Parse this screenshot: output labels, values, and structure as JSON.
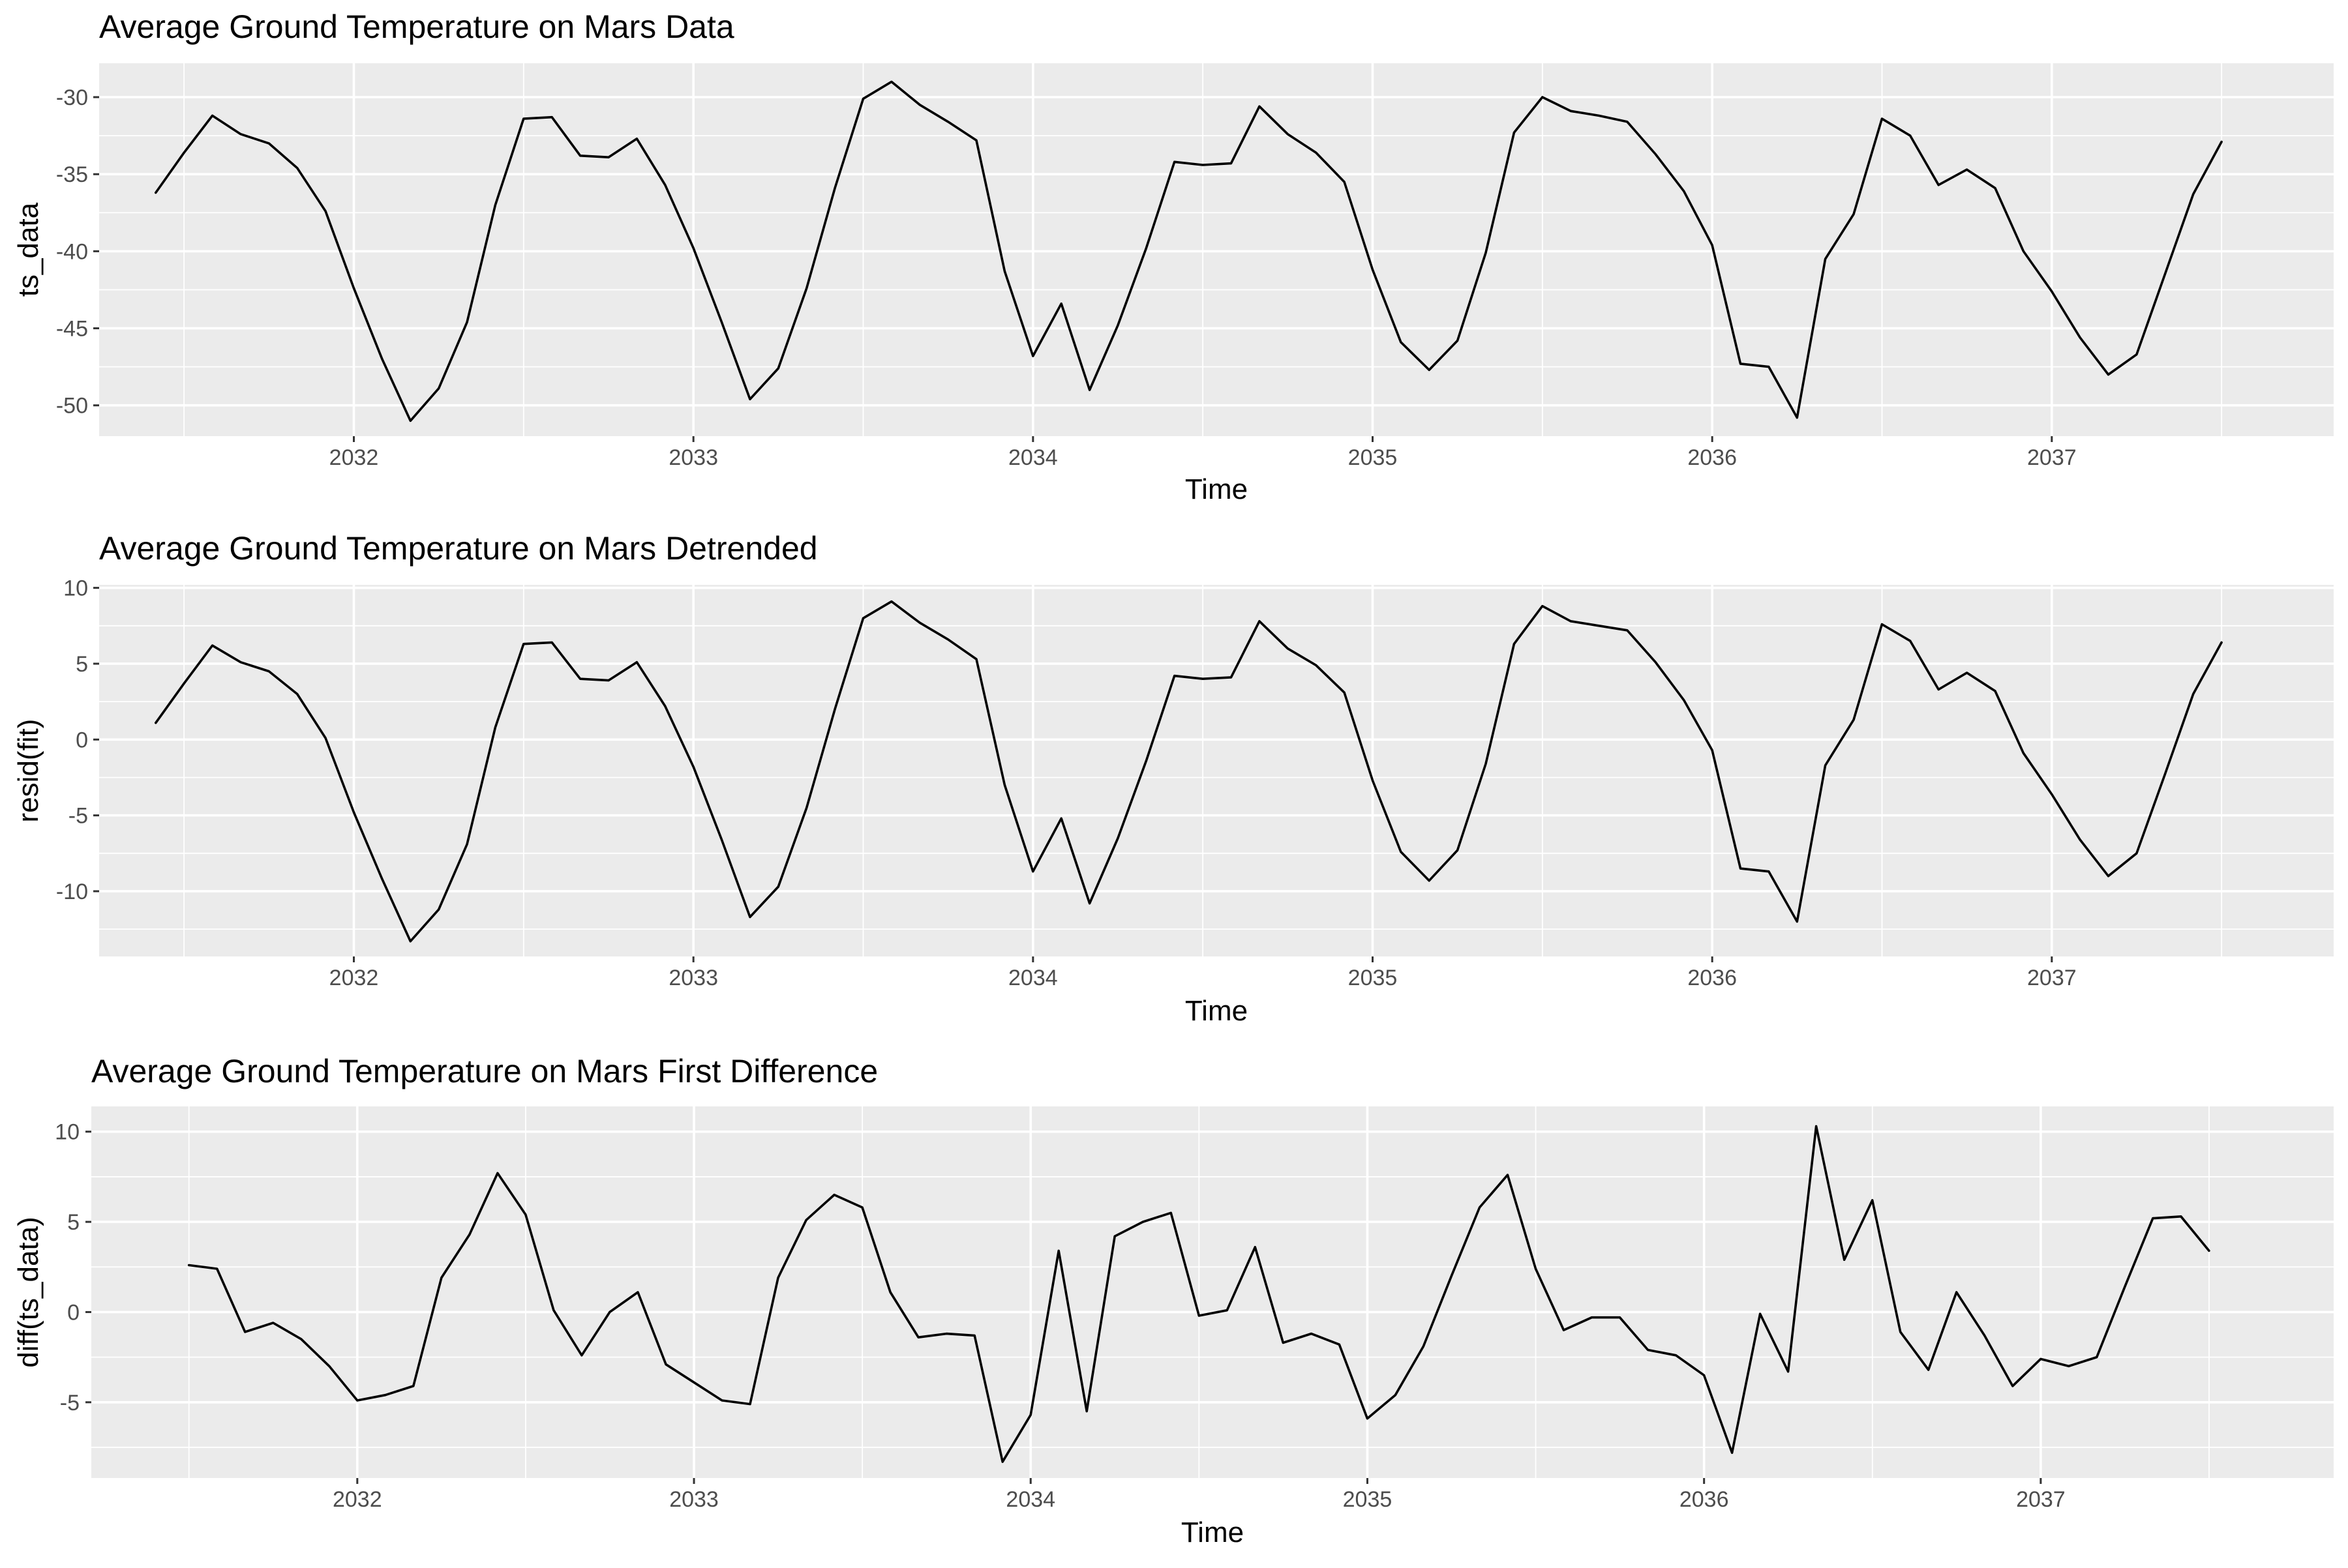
{
  "chart_data": [
    {
      "type": "line",
      "title": "Average Ground Temperature on Mars Data",
      "xlabel": "Time",
      "ylabel": "ts_data",
      "x_tick_labels": [
        "2032",
        "2033",
        "2034",
        "2035",
        "2036",
        "2037"
      ],
      "y_tick_labels": [
        "-30",
        "-35",
        "-40",
        "-45",
        "-50"
      ],
      "y_ticks": [
        -30,
        -35,
        -40,
        -45,
        -50
      ],
      "xlim": [
        2031.25,
        2037.83
      ],
      "ylim": [
        -52.0,
        -27.8
      ],
      "x_start": 2031.4167,
      "x_step": 0.08333,
      "grid": true,
      "values": [
        -36.2,
        -33.6,
        -31.2,
        -32.4,
        -33.0,
        -34.6,
        -37.4,
        -42.4,
        -47.0,
        -51.0,
        -48.9,
        -44.6,
        -37.0,
        -31.4,
        -31.3,
        -33.8,
        -33.9,
        -32.7,
        -35.7,
        -39.8,
        -44.6,
        -49.6,
        -47.6,
        -42.4,
        -35.9,
        -30.1,
        -29.0,
        -30.5,
        -31.6,
        -32.8,
        -41.3,
        -46.8,
        -43.4,
        -49.0,
        -44.8,
        -39.8,
        -34.2,
        -34.4,
        -34.3,
        -30.6,
        -32.4,
        -33.6,
        -35.5,
        -41.2,
        -45.9,
        -47.7,
        -45.8,
        -40.1,
        -32.3,
        -30.0,
        -30.9,
        -31.2,
        -31.6,
        -33.7,
        -36.1,
        -39.6,
        -47.3,
        -47.5,
        -50.8,
        -40.5,
        -37.6,
        -31.4,
        -32.5,
        -35.7,
        -34.7,
        -35.9,
        -40.0,
        -42.6,
        -45.6,
        -48.0,
        -46.7,
        -41.5,
        -36.3,
        -32.9
      ]
    },
    {
      "type": "line",
      "title": "Average Ground Temperature on Mars Detrended",
      "xlabel": "Time",
      "ylabel": "resid(fit)",
      "x_tick_labels": [
        "2032",
        "2033",
        "2034",
        "2035",
        "2036",
        "2037"
      ],
      "y_tick_labels": [
        "10",
        "5",
        "0",
        "-5",
        "-10"
      ],
      "y_ticks": [
        10,
        5,
        0,
        -5,
        -10
      ],
      "xlim": [
        2031.25,
        2037.83
      ],
      "ylim": [
        -14.3,
        10.2
      ],
      "x_start": 2031.4167,
      "x_step": 0.08333,
      "grid": true,
      "values": [
        1.1,
        3.7,
        6.2,
        5.1,
        4.5,
        3.0,
        0.1,
        -4.8,
        -9.2,
        -13.3,
        -11.2,
        -6.9,
        0.8,
        6.3,
        6.4,
        4.0,
        3.9,
        5.1,
        2.2,
        -1.8,
        -6.6,
        -11.7,
        -9.7,
        -4.5,
        2.0,
        8.0,
        9.1,
        7.7,
        6.6,
        5.3,
        -3.0,
        -8.7,
        -5.2,
        -10.8,
        -6.5,
        -1.4,
        4.2,
        4.0,
        4.1,
        7.8,
        6.0,
        4.9,
        3.1,
        -2.7,
        -7.4,
        -9.3,
        -7.3,
        -1.6,
        6.3,
        8.8,
        7.8,
        7.5,
        7.2,
        5.1,
        2.6,
        -0.7,
        -8.5,
        -8.7,
        -12.0,
        -1.7,
        1.3,
        7.6,
        6.5,
        3.3,
        4.4,
        3.2,
        -0.9,
        -3.6,
        -6.6,
        -9.0,
        -7.5,
        -2.3,
        3.0,
        6.4
      ]
    },
    {
      "type": "line",
      "title": "Average Ground Temperature on Mars First Difference",
      "xlabel": "Time",
      "ylabel": "diff(ts_data)",
      "x_tick_labels": [
        "2032",
        "2033",
        "2034",
        "2035",
        "2036",
        "2037"
      ],
      "y_tick_labels": [
        "10",
        "5",
        "0",
        "-5"
      ],
      "y_ticks": [
        10,
        5,
        0,
        -5
      ],
      "xlim": [
        2031.21,
        2037.87
      ],
      "ylim": [
        -9.2,
        11.4
      ],
      "x_start": 2031.5,
      "x_step": 0.08333,
      "grid": true,
      "values": [
        2.6,
        2.4,
        -1.1,
        -0.6,
        -1.5,
        -3.0,
        -4.9,
        -4.6,
        -4.1,
        1.9,
        4.3,
        7.7,
        5.4,
        0.1,
        -2.4,
        0.0,
        1.1,
        -2.9,
        -3.9,
        -4.9,
        -5.1,
        1.9,
        5.1,
        6.5,
        5.8,
        1.1,
        -1.4,
        -1.2,
        -1.3,
        -8.3,
        -5.7,
        3.4,
        -5.5,
        4.2,
        5.0,
        5.5,
        -0.2,
        0.1,
        3.6,
        -1.7,
        -1.2,
        -1.8,
        -5.9,
        -4.6,
        -1.9,
        2.0,
        5.8,
        7.6,
        2.4,
        -1.0,
        -0.3,
        -0.3,
        -2.1,
        -2.4,
        -3.5,
        -7.8,
        -0.1,
        -3.3,
        10.3,
        2.9,
        6.2,
        -1.1,
        -3.2,
        1.1,
        -1.3,
        -4.1,
        -2.6,
        -3.0,
        -2.5,
        1.4,
        5.2,
        5.3,
        3.4
      ]
    }
  ]
}
